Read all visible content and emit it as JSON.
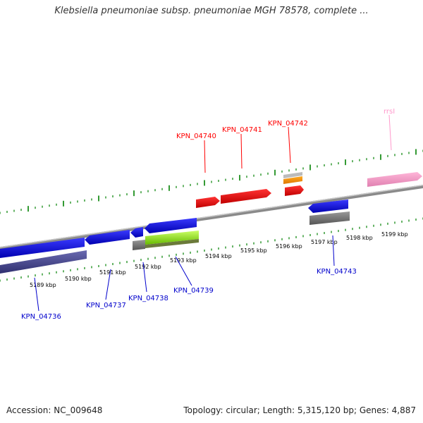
{
  "title": "Klebsiella pneumoniae subsp. pneumoniae MGH 78578, complete ...",
  "footer": {
    "accession": "Accession: NC_009648",
    "topology": "Topology: circular; Length: 5,315,120 bp; Genes: 4,887"
  },
  "ruler": {
    "ticks": [
      "5189 kbp",
      "5190 kbp",
      "5191 kbp",
      "5192 kbp",
      "5193 kbp",
      "5194 kbp",
      "5195 kbp",
      "5196 kbp",
      "5197 kbp",
      "5198 kbp",
      "5199 kbp"
    ]
  },
  "genes": {
    "forward": [
      {
        "label": "KPN_04740",
        "color": "#ff0000"
      },
      {
        "label": "KPN_04741",
        "color": "#ff0000"
      },
      {
        "label": "KPN_04742",
        "color": "#ff0000"
      },
      {
        "label": "rrsI",
        "color": "#ff99cc"
      }
    ],
    "reverse": [
      {
        "label": "KPN_04736",
        "color": "#0000ee"
      },
      {
        "label": "KPN_04737",
        "color": "#0000ee"
      },
      {
        "label": "KPN_04738",
        "color": "#0000ee"
      },
      {
        "label": "KPN_04739",
        "color": "#0000ee"
      },
      {
        "label": "KPN_04743",
        "color": "#0000ee"
      }
    ]
  },
  "colors": {
    "forward_label": "#ff0000",
    "reverse_label": "#0000cc",
    "rrna_label": "#ff99cc",
    "tick": "#008000",
    "backbone": "#888888"
  }
}
